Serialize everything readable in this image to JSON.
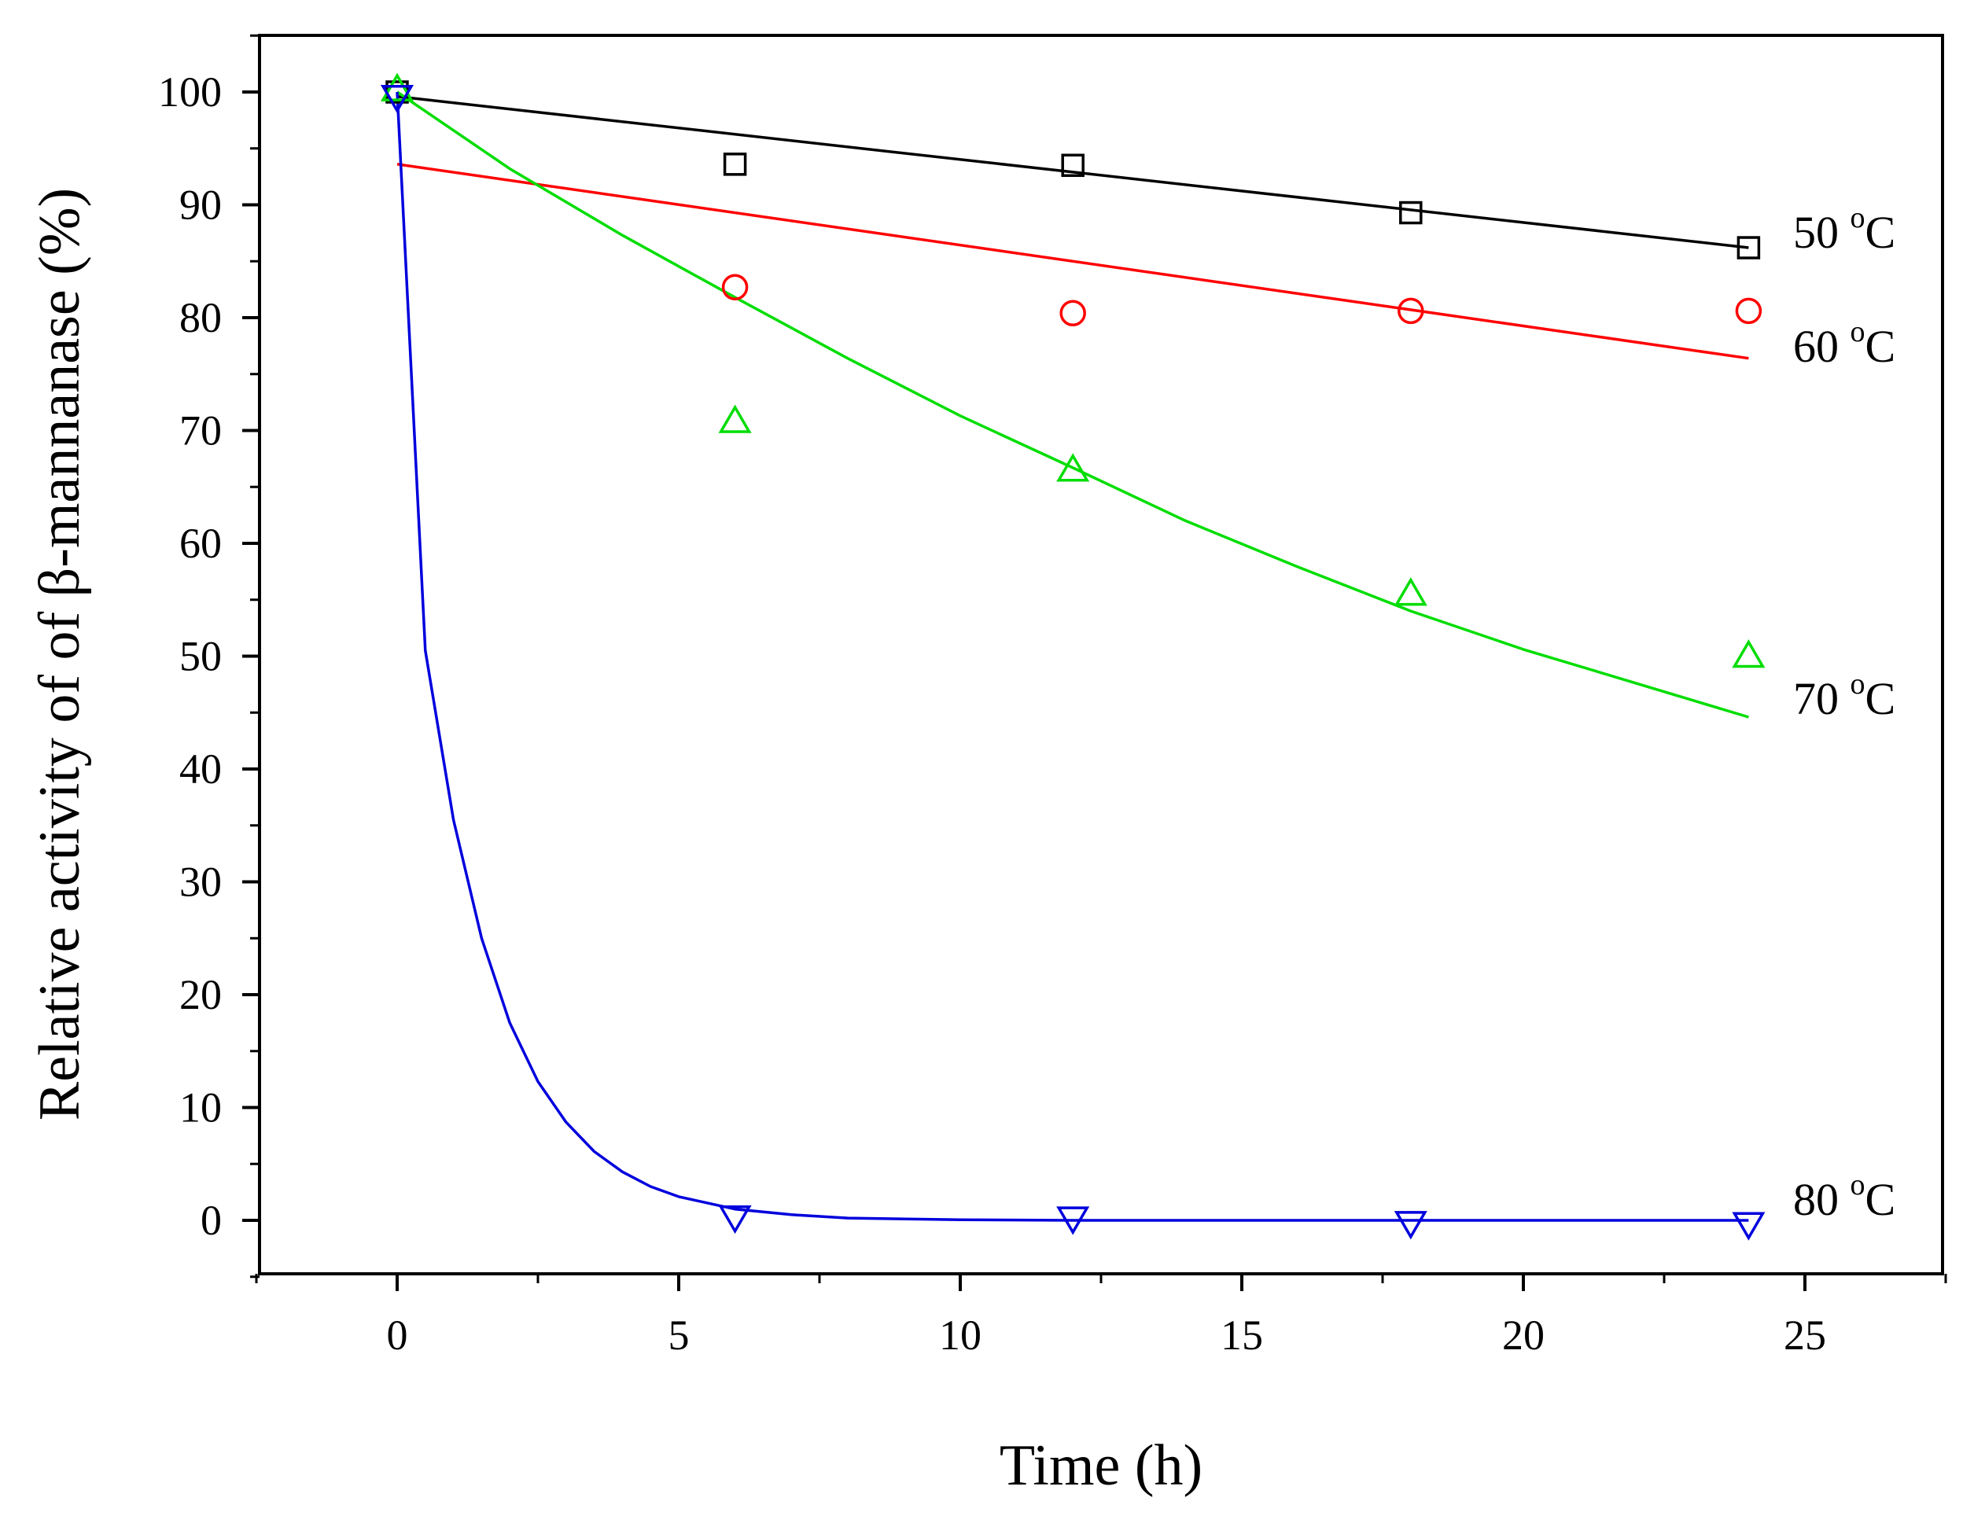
{
  "chart_data": {
    "type": "scatter",
    "title": "",
    "xlabel": "Time (h)",
    "ylabel": "Relative activity of of β-mannanase (%)",
    "xlim": [
      -2.5,
      27.5
    ],
    "ylim": [
      -5,
      105
    ],
    "xticks": [
      0,
      5,
      10,
      15,
      20,
      25
    ],
    "xtick_labels": [
      "0",
      "5",
      "10",
      "15",
      "20",
      "25"
    ],
    "yticks": [
      0,
      10,
      20,
      30,
      40,
      50,
      60,
      70,
      80,
      90,
      100
    ],
    "ytick_labels": [
      "0",
      "10",
      "20",
      "30",
      "40",
      "50",
      "60",
      "70",
      "80",
      "90",
      "100"
    ],
    "grid": false,
    "legend": "none (series labeled inline at right)",
    "series": [
      {
        "name": "50 °C",
        "label_main": "50 ",
        "label_sup": "o",
        "label_tail": "C",
        "color": "#000000",
        "marker": "square",
        "x": [
          0,
          6,
          12,
          18,
          24
        ],
        "y": [
          100,
          93.6,
          93.5,
          89.3,
          86.2
        ],
        "fit_x": [
          0,
          24
        ],
        "fit_y": [
          99.6,
          86.2
        ]
      },
      {
        "name": "60 °C",
        "label_main": "60 ",
        "label_sup": "o",
        "label_tail": "C",
        "color": "#ff0000",
        "marker": "circle",
        "x": [
          6,
          12,
          18,
          24
        ],
        "y": [
          82.7,
          80.4,
          80.6,
          80.6
        ],
        "fit_x": [
          0,
          24
        ],
        "fit_y": [
          93.6,
          76.4
        ]
      },
      {
        "name": "70 °C",
        "label_main": "70 ",
        "label_sup": "o",
        "label_tail": "C",
        "color": "#00dd00",
        "marker": "triangle-up",
        "x": [
          0,
          6,
          12,
          18,
          24
        ],
        "y": [
          100.2,
          70.8,
          66.5,
          55.5,
          50.0
        ],
        "fit_x": [
          0,
          2,
          4,
          6,
          8,
          10,
          12,
          14,
          16,
          18,
          20,
          22,
          24
        ],
        "fit_y": [
          100.0,
          93.2,
          87.3,
          81.8,
          76.4,
          71.3,
          66.7,
          62.0,
          57.9,
          54.0,
          50.6,
          47.6,
          44.6
        ]
      },
      {
        "name": "80 °C",
        "label_main": "80 ",
        "label_sup": "o",
        "label_tail": "C",
        "color": "#0000dd",
        "marker": "triangle-down",
        "x": [
          0,
          6,
          12,
          18,
          24
        ],
        "y": [
          99.6,
          0.3,
          0.2,
          -0.2,
          -0.3
        ],
        "fit_x": [
          0,
          0.5,
          1,
          1.5,
          2,
          2.5,
          3,
          3.5,
          4,
          4.5,
          5,
          6,
          7,
          8,
          10,
          12,
          15,
          18,
          21,
          24
        ],
        "fit_y": [
          100,
          50.5,
          35.5,
          25,
          17.5,
          12.3,
          8.7,
          6.1,
          4.3,
          3.0,
          2.1,
          1.0,
          0.5,
          0.2,
          0.05,
          0,
          0,
          0,
          0,
          0
        ]
      }
    ]
  }
}
